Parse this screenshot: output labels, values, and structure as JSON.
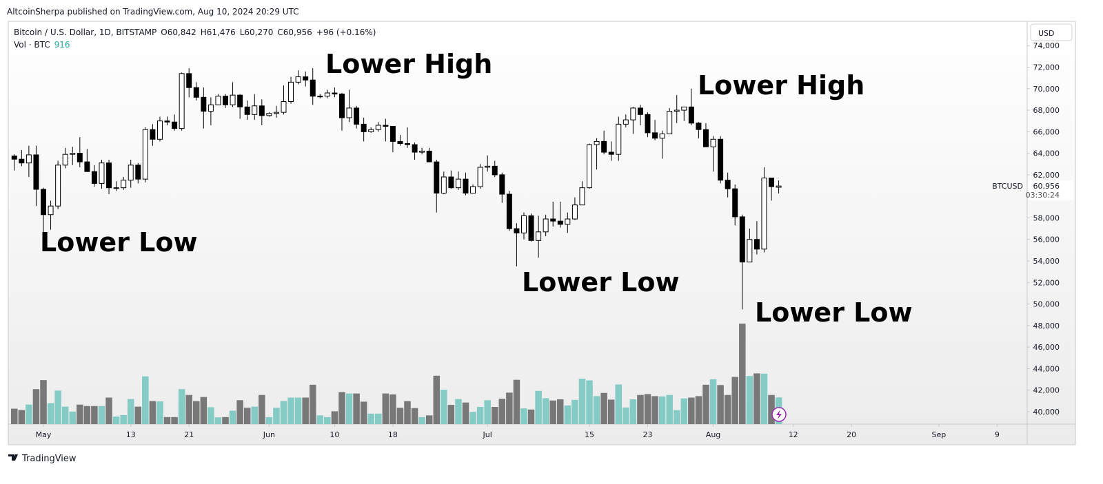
{
  "published": "AltcoinSherpa published on TradingView.com, Aug 10, 2024 20:29 UTC",
  "footer": "TradingView",
  "chart_data": {
    "type": "candlestick",
    "symbol": "Bitcoin / U.S. Dollar, 1D, BITSTAMP",
    "ohlc_labels": [
      "O60,842",
      "H61,476",
      "L60,270",
      "C60,956",
      "+96 (+0.16%)"
    ],
    "volume_title": "Vol · BTC",
    "currency": "USD",
    "ticker": "BTCUSD",
    "last_price_label": "60,956",
    "countdown": "03:30:24",
    "annotations": [
      "Lower High",
      "Lower High",
      "Lower Low",
      "Lower Low",
      "Lower Low"
    ],
    "up_color": "#ffffff",
    "down_color": "#000000",
    "up_volume_color": "#84cbc5",
    "down_volume_color": "#787878",
    "ylim": [
      38850,
      76250
    ],
    "yticks": [
      {
        "value": 40000,
        "label": "40,000"
      },
      {
        "value": 42000,
        "label": "42,000"
      },
      {
        "value": 44000,
        "label": "44,000"
      },
      {
        "value": 46000,
        "label": "46,000"
      },
      {
        "value": 48000,
        "label": "48,000"
      },
      {
        "value": 50000,
        "label": "50,000"
      },
      {
        "value": 52000,
        "label": "52,000"
      },
      {
        "value": 54000,
        "label": "54,000"
      },
      {
        "value": 56000,
        "label": "56,000"
      },
      {
        "value": 58000,
        "label": "58,000"
      },
      {
        "value": 60000,
        "label": "60,000"
      },
      {
        "value": 62000,
        "label": "62,000"
      },
      {
        "value": 64000,
        "label": "64,000"
      },
      {
        "value": 66000,
        "label": "66,000"
      },
      {
        "value": 68000,
        "label": "68,000"
      },
      {
        "value": 70000,
        "label": "70,000"
      },
      {
        "value": 72000,
        "label": "72,000"
      },
      {
        "value": 74000,
        "label": "74,000"
      }
    ],
    "xlim": [
      -0.83,
      139.13
    ],
    "xticks": [
      {
        "value": 4,
        "label": "May"
      },
      {
        "value": 16,
        "label": "13"
      },
      {
        "value": 24,
        "label": "21"
      },
      {
        "value": 35,
        "label": "Jun"
      },
      {
        "value": 44,
        "label": "10"
      },
      {
        "value": 52,
        "label": "18"
      },
      {
        "value": 65,
        "label": "Jul"
      },
      {
        "value": 79,
        "label": "15"
      },
      {
        "value": 87,
        "label": "23"
      },
      {
        "value": 96,
        "label": "Aug"
      },
      {
        "value": 107,
        "label": "12"
      },
      {
        "value": 115,
        "label": "20"
      },
      {
        "value": 127,
        "label": "Sep"
      },
      {
        "value": 135,
        "label": "9"
      }
    ],
    "open": [
      63750,
      63450,
      63100,
      63850,
      60650,
      58300,
      59100,
      62900,
      63900,
      64000,
      63200,
      62300,
      61200,
      63100,
      60800,
      60800,
      61500,
      62900,
      61600,
      66200,
      65300,
      67000,
      66900,
      66300,
      71400,
      70100,
      69200,
      67900,
      68500,
      69300,
      68500,
      69400,
      68300,
      67600,
      68400,
      67500,
      67700,
      67800,
      68800,
      70600,
      71100,
      70800,
      69300,
      69300,
      69600,
      69500,
      67300,
      68200,
      66700,
      66000,
      66200,
      66600,
      66500,
      65100,
      64900,
      64800,
      64100,
      64200,
      63200,
      60300,
      61800,
      60800,
      61600,
      60300,
      60900,
      62700,
      62800,
      62000,
      60200,
      57000,
      56600,
      58200,
      55900,
      56700,
      57900,
      57700,
      57400,
      57900,
      59200,
      60800,
      64800,
      65100,
      64100,
      63900,
      66700,
      67100,
      68200,
      67600,
      65900,
      65400,
      65800,
      67900,
      68000,
      68300,
      66800,
      66200,
      64600,
      65300,
      61500,
      60700,
      58100,
      53900,
      56000,
      55100,
      61700,
      60842
    ],
    "high": [
      63900,
      64300,
      64700,
      64700,
      60800,
      59600,
      63300,
      64500,
      64600,
      65500,
      64400,
      62900,
      63400,
      63400,
      61400,
      61800,
      63400,
      63100,
      66400,
      66700,
      67400,
      67400,
      67600,
      71500,
      71900,
      70600,
      70100,
      69200,
      69500,
      69500,
      70600,
      69500,
      68900,
      69500,
      69000,
      67800,
      68400,
      70300,
      71100,
      71700,
      71600,
      71900,
      69500,
      69900,
      70100,
      69600,
      69900,
      68400,
      67300,
      66400,
      66900,
      67200,
      66500,
      65700,
      66400,
      65000,
      64500,
      64500,
      63400,
      62300,
      62400,
      62300,
      62200,
      61100,
      63000,
      63800,
      63300,
      62200,
      60500,
      57500,
      58500,
      58400,
      58200,
      58300,
      59500,
      59500,
      58500,
      59900,
      61400,
      64900,
      65400,
      66100,
      65100,
      67400,
      67600,
      68300,
      68500,
      67800,
      67100,
      66100,
      68200,
      69400,
      68300,
      70000,
      66900,
      66800,
      65600,
      65600,
      62200,
      61100,
      58300,
      57000,
      57700,
      62700,
      61700,
      61476
    ],
    "low": [
      62400,
      62800,
      61800,
      59100,
      56500,
      56900,
      58800,
      62600,
      62900,
      62700,
      62300,
      60900,
      60700,
      60200,
      60500,
      60600,
      60800,
      61200,
      61300,
      64700,
      65100,
      66600,
      66100,
      66100,
      69200,
      68900,
      66300,
      66600,
      68500,
      68200,
      68300,
      67200,
      67100,
      67100,
      66600,
      67400,
      67300,
      67600,
      68600,
      70400,
      70200,
      68500,
      69100,
      69100,
      69200,
      66100,
      66900,
      66300,
      65100,
      65900,
      66000,
      65100,
      64100,
      64700,
      64500,
      63400,
      63900,
      63200,
      58500,
      60200,
      60700,
      60600,
      60100,
      60300,
      60700,
      62300,
      61800,
      59400,
      56800,
      53500,
      56000,
      55800,
      54300,
      56300,
      57200,
      57100,
      56600,
      57800,
      59200,
      60700,
      62500,
      63900,
      63300,
      63300,
      66400,
      65800,
      66600,
      65500,
      65200,
      63500,
      65800,
      66800,
      67000,
      66600,
      65400,
      64600,
      62300,
      61200,
      59900,
      57300,
      49500,
      53900,
      54600,
      54800,
      59600,
      60270
    ],
    "close": [
      63450,
      63100,
      63850,
      60650,
      58300,
      59100,
      62900,
      63900,
      64000,
      63200,
      62300,
      61200,
      63100,
      60800,
      60800,
      61500,
      62900,
      61600,
      66200,
      65300,
      67000,
      66900,
      66300,
      71400,
      70100,
      69200,
      67900,
      68500,
      69300,
      68500,
      69400,
      68300,
      67600,
      68400,
      67500,
      67700,
      67800,
      68800,
      70600,
      71100,
      70800,
      69300,
      69300,
      69600,
      69500,
      67300,
      68200,
      66700,
      66000,
      66200,
      66600,
      66500,
      65100,
      64900,
      64800,
      64100,
      64200,
      63200,
      60300,
      61800,
      60800,
      61600,
      60300,
      60900,
      62700,
      62800,
      62000,
      60200,
      57000,
      56600,
      58200,
      55900,
      56700,
      57900,
      57700,
      57400,
      57900,
      59200,
      60800,
      64800,
      65100,
      64100,
      63900,
      66700,
      67100,
      68200,
      67600,
      65900,
      65400,
      65800,
      67900,
      68000,
      68300,
      66800,
      66200,
      64600,
      65300,
      61500,
      60700,
      58100,
      53900,
      56000,
      55100,
      61700,
      60900,
      60956
    ],
    "volume": [
      530,
      480,
      670,
      1200,
      1510,
      720,
      1150,
      600,
      430,
      670,
      620,
      620,
      620,
      910,
      260,
      310,
      860,
      600,
      1640,
      790,
      780,
      240,
      240,
      1200,
      1000,
      790,
      930,
      580,
      230,
      240,
      460,
      820,
      560,
      600,
      1000,
      240,
      560,
      790,
      910,
      910,
      910,
      1350,
      300,
      240,
      440,
      1100,
      1050,
      1050,
      770,
      360,
      360,
      1050,
      1020,
      560,
      790,
      550,
      240,
      300,
      1660,
      1180,
      660,
      860,
      740,
      420,
      590,
      820,
      590,
      870,
      1080,
      1520,
      540,
      500,
      1140,
      890,
      810,
      850,
      640,
      830,
      1560,
      1500,
      960,
      1070,
      840,
      1360,
      570,
      850,
      1000,
      1030,
      960,
      950,
      1000,
      480,
      880,
      910,
      960,
      1350,
      1540,
      1340,
      1000,
      1620,
      3450,
      1650,
      1740,
      1730,
      1000,
      916
    ]
  }
}
